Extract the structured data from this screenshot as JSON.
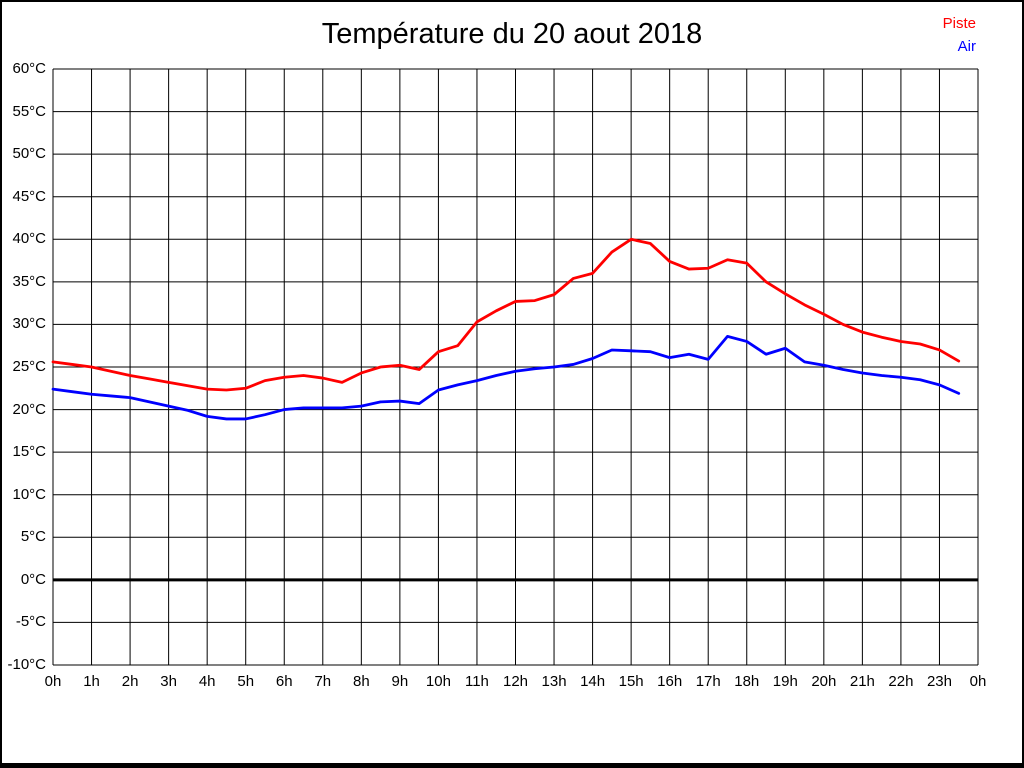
{
  "title": "Température du 20 aout 2018",
  "legend": [
    {
      "label": "Piste",
      "color": "#ff0000"
    },
    {
      "label": "Air",
      "color": "#0000ff"
    }
  ],
  "colors": {
    "piste_line": "#ff0000",
    "air_line": "#0000ff",
    "grid": "#000000",
    "zero_line": "#000000",
    "background": "#ffffff",
    "frame": "#000000"
  },
  "chart_data": {
    "type": "line",
    "title": "Température du 20 aout 2018",
    "xlabel": "",
    "ylabel": "",
    "ylim": [
      -10,
      60
    ],
    "ytick_step": 5,
    "ytick_labels": [
      "60°C",
      "55°C",
      "50°C",
      "45°C",
      "40°C",
      "35°C",
      "30°C",
      "25°C",
      "20°C",
      "15°C",
      "10°C",
      "5°C",
      "0°C",
      "-5°C",
      "-10°C"
    ],
    "xtick_labels": [
      "0h",
      "1h",
      "2h",
      "3h",
      "4h",
      "5h",
      "6h",
      "7h",
      "8h",
      "9h",
      "10h",
      "11h",
      "12h",
      "13h",
      "14h",
      "15h",
      "16h",
      "17h",
      "18h",
      "19h",
      "20h",
      "21h",
      "22h",
      "23h",
      "0h"
    ],
    "grid": true,
    "zero_line_bold": true,
    "legend_position": "top-right",
    "x_hours": [
      0,
      0.5,
      1,
      1.5,
      2,
      2.5,
      3,
      3.5,
      4,
      4.5,
      5,
      5.5,
      6,
      6.5,
      7,
      7.5,
      8,
      8.5,
      9,
      9.5,
      10,
      10.5,
      11,
      11.5,
      12,
      12.5,
      13,
      13.5,
      14,
      14.5,
      15,
      15.5,
      16,
      16.5,
      17,
      17.5,
      18,
      18.5,
      19,
      19.5,
      20,
      20.5,
      21,
      21.5,
      22,
      22.5,
      23,
      23.5
    ],
    "series": [
      {
        "name": "Piste",
        "color": "#ff0000",
        "values": [
          25.6,
          25.3,
          25.0,
          24.5,
          24.0,
          23.6,
          23.2,
          22.8,
          22.4,
          22.3,
          22.5,
          23.4,
          23.8,
          24.0,
          23.7,
          23.2,
          24.3,
          25.0,
          25.2,
          24.7,
          26.8,
          27.5,
          30.3,
          31.6,
          32.7,
          32.8,
          33.5,
          35.4,
          36.0,
          38.5,
          40.0,
          39.5,
          37.4,
          36.5,
          36.6,
          37.6,
          37.2,
          35.0,
          33.6,
          32.3,
          31.2,
          30.0,
          29.1,
          28.5,
          28.0,
          27.7,
          27.0,
          25.7
        ]
      },
      {
        "name": "Air",
        "color": "#0000ff",
        "values": [
          22.4,
          22.1,
          21.8,
          21.6,
          21.4,
          20.9,
          20.4,
          19.9,
          19.2,
          18.9,
          18.9,
          19.4,
          20.0,
          20.2,
          20.2,
          20.2,
          20.4,
          20.9,
          21.0,
          20.7,
          22.3,
          22.9,
          23.4,
          24.0,
          24.5,
          24.8,
          25.0,
          25.3,
          26.0,
          27.0,
          26.9,
          26.8,
          26.1,
          26.5,
          25.9,
          28.6,
          28.0,
          26.5,
          27.2,
          25.6,
          25.2,
          24.7,
          24.3,
          24.0,
          23.8,
          23.5,
          22.9,
          21.9
        ]
      }
    ]
  }
}
